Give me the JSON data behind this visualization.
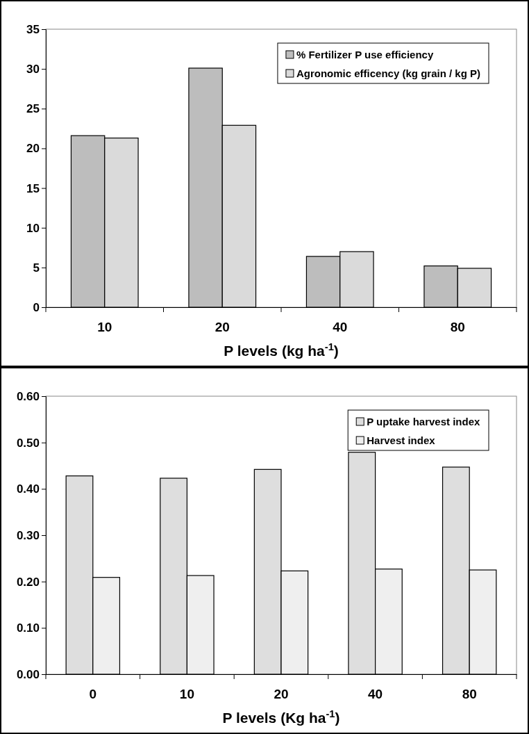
{
  "chart_data": [
    {
      "type": "bar",
      "xlabel": "P levels (kg ha$^{-1}$)",
      "categories": [
        "10",
        "20",
        "40",
        "80"
      ],
      "series": [
        {
          "name": "% Fertilizer P use efficiency",
          "color": "#bdbdbd",
          "values": [
            21.6,
            30.1,
            6.4,
            5.2
          ]
        },
        {
          "name": "Agronomic efficency (kg grain / kg P)",
          "color": "#dadada",
          "values": [
            21.3,
            22.9,
            7.0,
            4.9
          ]
        }
      ],
      "ylim": [
        0,
        35
      ],
      "yticks": [
        0,
        5,
        10,
        15,
        20,
        25,
        30,
        35
      ],
      "legend": "top right"
    },
    {
      "type": "bar",
      "xlabel": "P levels (Kg ha$^{-1}$)",
      "categories": [
        "0",
        "10",
        "20",
        "40",
        "80"
      ],
      "series": [
        {
          "name": "P uptake harvest index",
          "color": "#dedede",
          "values": [
            0.428,
            0.423,
            0.442,
            0.479,
            0.447
          ]
        },
        {
          "name": "Harvest index",
          "color": "#efefef",
          "values": [
            0.209,
            0.213,
            0.223,
            0.227,
            0.225
          ]
        }
      ],
      "ylim": [
        0,
        0.6
      ],
      "yticks": [
        {
          "value": 0,
          "label": "0.00"
        },
        {
          "value": 0.1,
          "label": "0.10"
        },
        {
          "value": 0.2,
          "label": "0.20"
        },
        {
          "value": 0.3,
          "label": "0.30"
        },
        {
          "value": 0.4,
          "label": "0.40"
        },
        {
          "value": 0.5,
          "label": "0.50"
        },
        {
          "value": 0.6,
          "label": "0.60"
        }
      ],
      "legend": "top right"
    }
  ]
}
